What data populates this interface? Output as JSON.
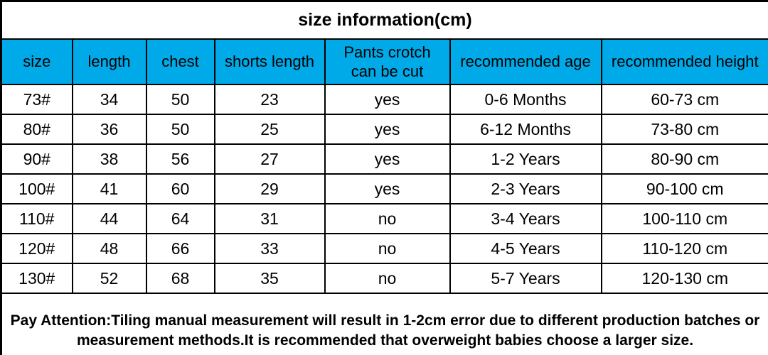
{
  "page": {
    "title": "size information(cm)"
  },
  "table": {
    "headers_display": [
      "size",
      "length",
      "chest",
      "shorts length",
      "Pants crotch\ncan be cut",
      "recommended age",
      "recommended height"
    ],
    "rows": [
      [
        "73#",
        "34",
        "50",
        "23",
        "yes",
        "0-6 Months",
        "60-73 cm"
      ],
      [
        "80#",
        "36",
        "50",
        "25",
        "yes",
        "6-12 Months",
        "73-80 cm"
      ],
      [
        "90#",
        "38",
        "56",
        "27",
        "yes",
        "1-2 Years",
        "80-90 cm"
      ],
      [
        "100#",
        "41",
        "60",
        "29",
        "yes",
        "2-3 Years",
        "90-100 cm"
      ],
      [
        "110#",
        "44",
        "64",
        "31",
        "no",
        "3-4 Years",
        "100-110 cm"
      ],
      [
        "120#",
        "48",
        "66",
        "33",
        "no",
        "4-5 Years",
        "110-120 cm"
      ],
      [
        "130#",
        "52",
        "68",
        "35",
        "no",
        "5-7 Years",
        "120-130 cm"
      ]
    ],
    "note": "Pay Attention:Tiling manual measurement will result in 1-2cm error due to different production batches or measurement methods.It is recommended that overweight babies choose a larger size."
  },
  "colors": {
    "header_bg": "#00a9e8",
    "note_text": "#ff0000",
    "border": "#000000",
    "background": "#ffffff"
  },
  "chart_data": {
    "type": "table",
    "title": "size information(cm)",
    "columns": [
      "size",
      "length",
      "chest",
      "shorts length",
      "Pants crotch can be cut",
      "recommended age",
      "recommended height"
    ],
    "rows": [
      [
        "73#",
        34,
        50,
        23,
        "yes",
        "0-6 Months",
        "60-73 cm"
      ],
      [
        "80#",
        36,
        50,
        25,
        "yes",
        "6-12 Months",
        "73-80 cm"
      ],
      [
        "90#",
        38,
        56,
        27,
        "yes",
        "1-2 Years",
        "80-90 cm"
      ],
      [
        "100#",
        41,
        60,
        29,
        "yes",
        "2-3 Years",
        "90-100 cm"
      ],
      [
        "110#",
        44,
        64,
        31,
        "no",
        "3-4 Years",
        "100-110 cm"
      ],
      [
        "120#",
        48,
        66,
        33,
        "no",
        "4-5 Years",
        "110-120 cm"
      ],
      [
        "130#",
        52,
        68,
        35,
        "no",
        "5-7 Years",
        "120-130 cm"
      ]
    ],
    "footnote": "Pay Attention:Tiling manual measurement will result in 1-2cm error due to different production batches or measurement methods.It is recommended that overweight babies choose a larger size."
  }
}
